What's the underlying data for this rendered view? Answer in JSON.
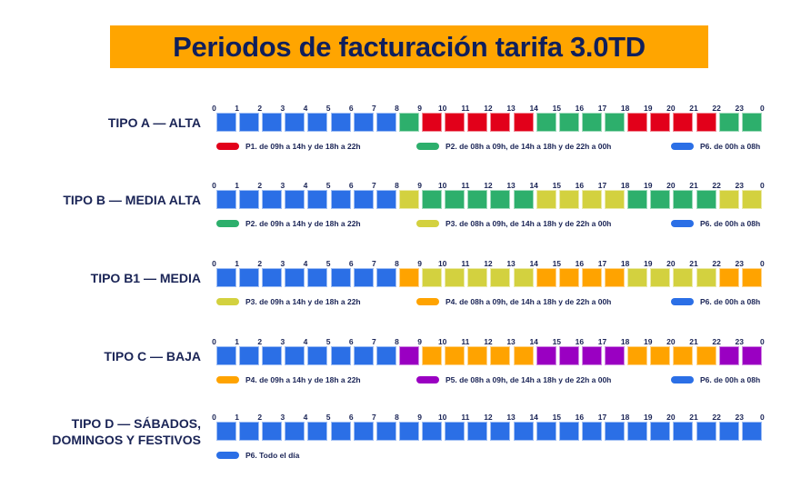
{
  "title": "Periodos de facturación tarifa 3.0TD",
  "colors": {
    "P1": "#e2001a",
    "P2": "#2daf6c",
    "P3": "#d3d13f",
    "P4": "#ffa300",
    "P5": "#9a00c2",
    "P6": "#2b6fe6",
    "title_bg": "#ffa500",
    "title_text": "#0f1f5c"
  },
  "hour_ticks": [
    "0",
    "1",
    "2",
    "3",
    "4",
    "5",
    "6",
    "7",
    "8",
    "9",
    "10",
    "11",
    "12",
    "13",
    "14",
    "15",
    "16",
    "17",
    "18",
    "19",
    "20",
    "21",
    "22",
    "23",
    "0"
  ],
  "rows": [
    {
      "label_lines": [
        "TIPO A — ALTA"
      ],
      "hours": [
        "P6",
        "P6",
        "P6",
        "P6",
        "P6",
        "P6",
        "P6",
        "P6",
        "P2",
        "P1",
        "P1",
        "P1",
        "P1",
        "P1",
        "P2",
        "P2",
        "P2",
        "P2",
        "P1",
        "P1",
        "P1",
        "P1",
        "P2",
        "P2"
      ],
      "legend": [
        {
          "period": "P1",
          "text": "P1. de 09h a 14h y de 18h a 22h"
        },
        {
          "period": "P2",
          "text": "P2. de 08h a 09h, de 14h a 18h y de 22h a 00h"
        },
        {
          "period": "P6",
          "text": "P6. de 00h a 08h"
        }
      ]
    },
    {
      "label_lines": [
        "TIPO B — MEDIA ALTA"
      ],
      "hours": [
        "P6",
        "P6",
        "P6",
        "P6",
        "P6",
        "P6",
        "P6",
        "P6",
        "P3",
        "P2",
        "P2",
        "P2",
        "P2",
        "P2",
        "P3",
        "P3",
        "P3",
        "P3",
        "P2",
        "P2",
        "P2",
        "P2",
        "P3",
        "P3"
      ],
      "legend": [
        {
          "period": "P2",
          "text": "P2. de 09h a 14h y de 18h a 22h"
        },
        {
          "period": "P3",
          "text": "P3. de 08h a 09h, de 14h a 18h y de 22h a 00h"
        },
        {
          "period": "P6",
          "text": "P6. de 00h a 08h"
        }
      ]
    },
    {
      "label_lines": [
        "TIPO B1 — MEDIA"
      ],
      "hours": [
        "P6",
        "P6",
        "P6",
        "P6",
        "P6",
        "P6",
        "P6",
        "P6",
        "P4",
        "P3",
        "P3",
        "P3",
        "P3",
        "P3",
        "P4",
        "P4",
        "P4",
        "P4",
        "P3",
        "P3",
        "P3",
        "P3",
        "P4",
        "P4"
      ],
      "legend": [
        {
          "period": "P3",
          "text": "P3. de 09h a 14h y de 18h a 22h"
        },
        {
          "period": "P4",
          "text": "P4. de 08h a 09h, de 14h a 18h y de 22h a 00h"
        },
        {
          "period": "P6",
          "text": "P6. de 00h a 08h"
        }
      ]
    },
    {
      "label_lines": [
        "TIPO C — BAJA"
      ],
      "hours": [
        "P6",
        "P6",
        "P6",
        "P6",
        "P6",
        "P6",
        "P6",
        "P6",
        "P5",
        "P4",
        "P4",
        "P4",
        "P4",
        "P4",
        "P5",
        "P5",
        "P5",
        "P5",
        "P4",
        "P4",
        "P4",
        "P4",
        "P5",
        "P5"
      ],
      "legend": [
        {
          "period": "P4",
          "text": "P4. de 09h a 14h y de 18h a 22h"
        },
        {
          "period": "P5",
          "text": "P5. de 08h a 09h, de 14h a 18h y de 22h a 00h"
        },
        {
          "period": "P6",
          "text": "P6. de 00h a 08h"
        }
      ]
    },
    {
      "label_lines": [
        "TIPO D — SÁBADOS,",
        "DOMINGOS Y FESTIVOS"
      ],
      "hours": [
        "P6",
        "P6",
        "P6",
        "P6",
        "P6",
        "P6",
        "P6",
        "P6",
        "P6",
        "P6",
        "P6",
        "P6",
        "P6",
        "P6",
        "P6",
        "P6",
        "P6",
        "P6",
        "P6",
        "P6",
        "P6",
        "P6",
        "P6",
        "P6"
      ],
      "legend": [
        {
          "period": "P6",
          "text": "P6. Todo el día"
        }
      ]
    }
  ]
}
